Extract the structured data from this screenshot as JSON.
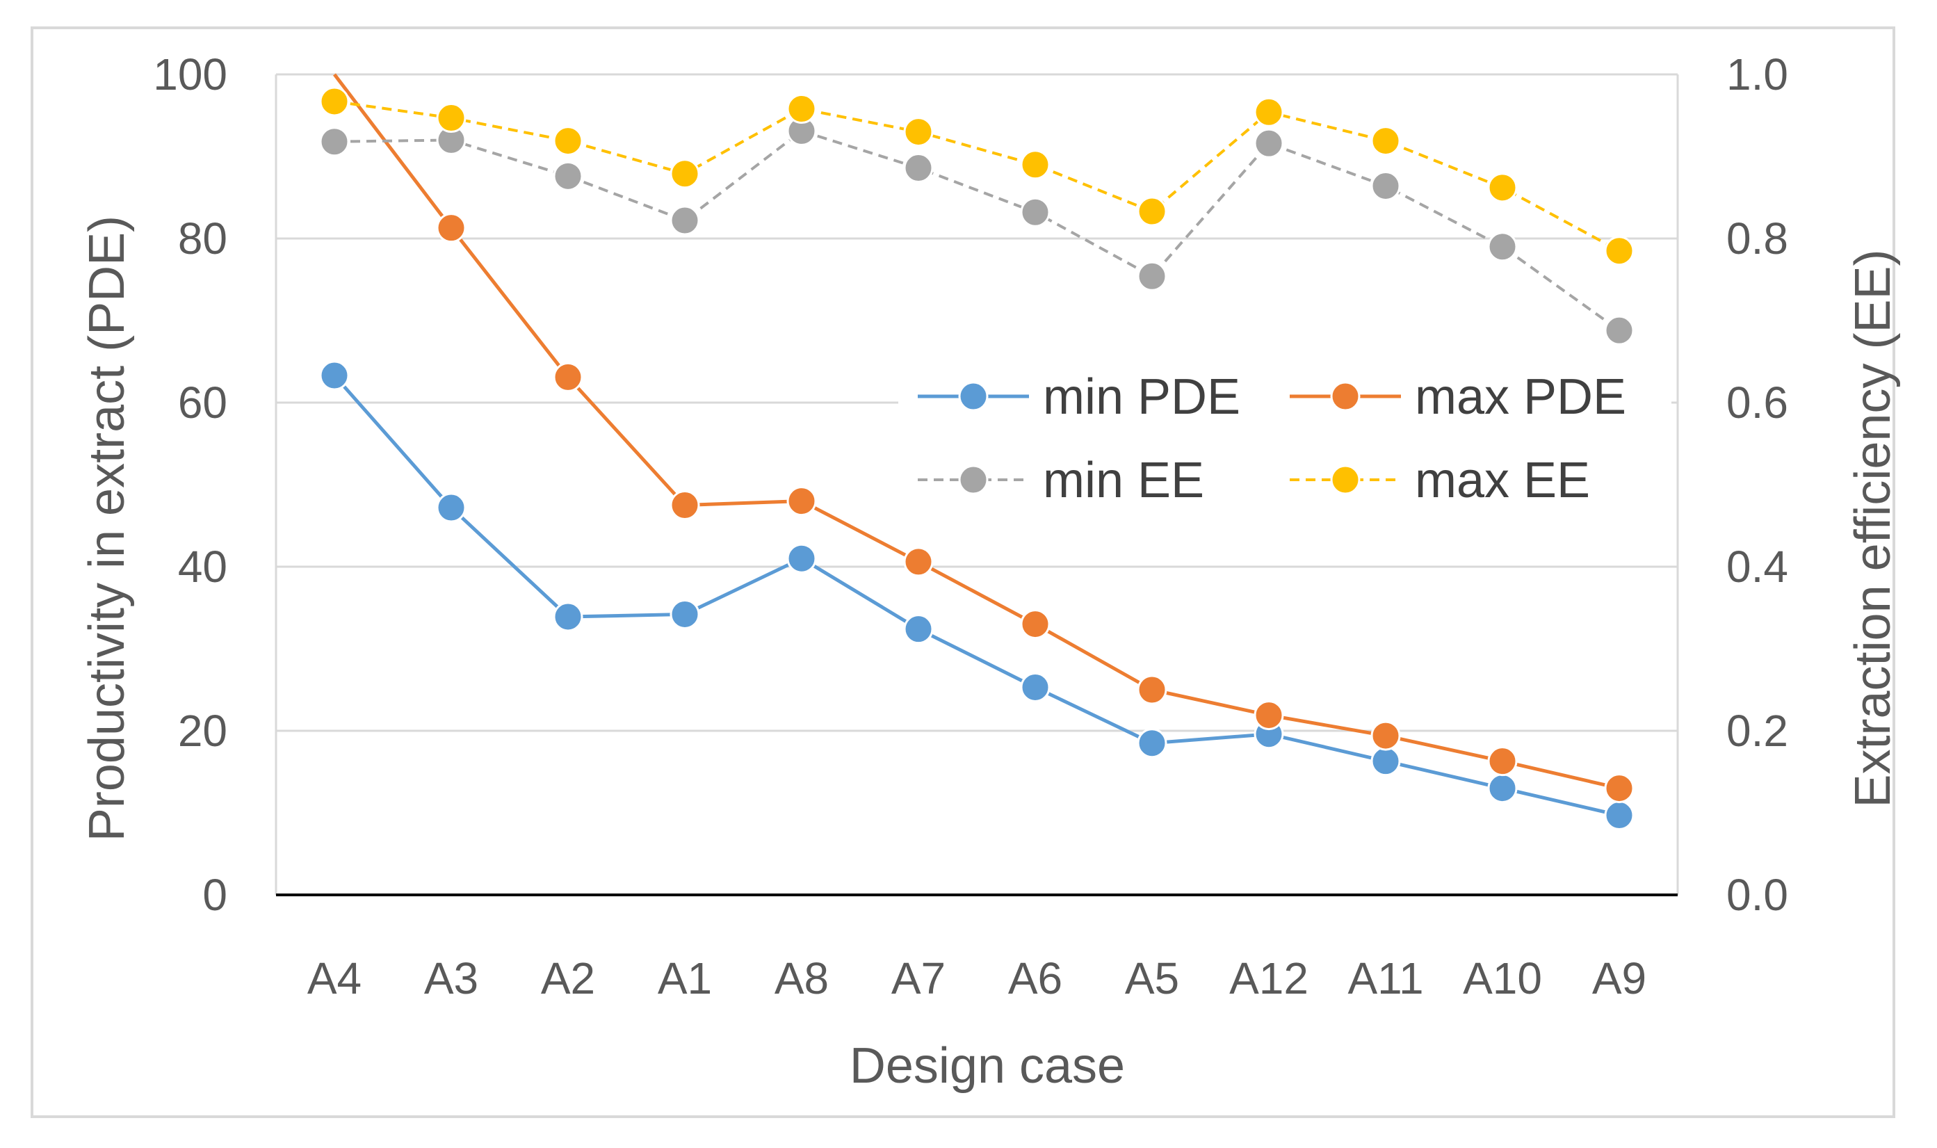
{
  "chart_data": {
    "type": "line",
    "xlabel": "Design case",
    "ylabel": "Productivity in extract (PDE)",
    "y2label": "Extraction efficiency (EE)",
    "categories": [
      "A4",
      "A3",
      "A2",
      "A1",
      "A8",
      "A7",
      "A6",
      "A5",
      "A12",
      "A11",
      "A10",
      "A9"
    ],
    "ylim": [
      0,
      100
    ],
    "y2lim": [
      0,
      1
    ],
    "yticks": [
      "0",
      "20",
      "40",
      "60",
      "80",
      "100"
    ],
    "y2ticks": [
      "0.0",
      "0.2",
      "0.4",
      "0.6",
      "0.8",
      "1.0"
    ],
    "grid": true,
    "legend_position": "center-right",
    "series": [
      {
        "name": "min PDE",
        "axis": "left",
        "color": "#5b9bd5",
        "dashed": false,
        "values": [
          63.3,
          47.2,
          33.9,
          34.2,
          41.0,
          32.4,
          25.3,
          18.5,
          19.6,
          16.3,
          13.0,
          9.7
        ]
      },
      {
        "name": "max PDE",
        "axis": "left",
        "color": "#ed7d31",
        "dashed": false,
        "values": [
          101.5,
          81.3,
          63.1,
          47.5,
          48.0,
          40.6,
          33.0,
          25.0,
          21.9,
          19.4,
          16.3,
          13.0
        ]
      },
      {
        "name": "min EE",
        "axis": "right",
        "color": "#a5a5a5",
        "dashed": true,
        "values": [
          0.918,
          0.92,
          0.876,
          0.822,
          0.931,
          0.886,
          0.832,
          0.754,
          0.916,
          0.864,
          0.79,
          0.688
        ]
      },
      {
        "name": "max EE",
        "axis": "right",
        "color": "#ffc000",
        "dashed": true,
        "values": [
          0.967,
          0.947,
          0.919,
          0.879,
          0.958,
          0.93,
          0.89,
          0.833,
          0.954,
          0.919,
          0.862,
          0.785
        ]
      }
    ]
  }
}
